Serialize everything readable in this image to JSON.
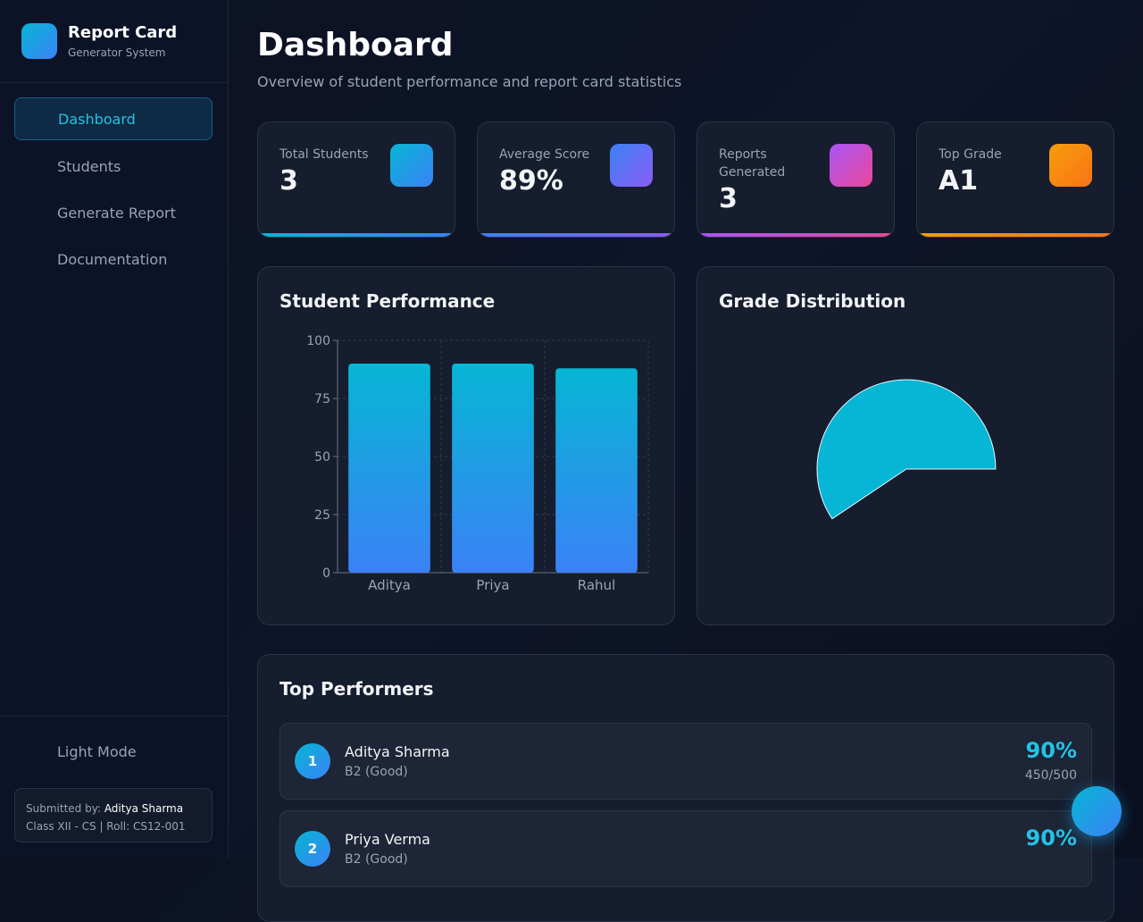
{
  "sidebar": {
    "brand": {
      "title": "Report Card",
      "subtitle": "Generator System"
    },
    "nav": [
      "Dashboard",
      "Students",
      "Generate Report",
      "Documentation"
    ],
    "theme_toggle": "Light Mode",
    "footer": {
      "submitted_label": "Submitted by:",
      "submitted_name": "Aditya Sharma",
      "class_info": "Class XII - CS | Roll: CS12-001"
    }
  },
  "header": {
    "title": "Dashboard",
    "subtitle": "Overview of student performance and report card statistics"
  },
  "stats": [
    {
      "label": "Total Students",
      "value": "3"
    },
    {
      "label": "Average Score",
      "value": "89%"
    },
    {
      "label": "Reports Generated",
      "value": "3"
    },
    {
      "label": "Top Grade",
      "value": "A1"
    }
  ],
  "chart_data": [
    {
      "type": "bar",
      "title": "Student Performance",
      "categories": [
        "Aditya",
        "Priya",
        "Rahul"
      ],
      "values": [
        90,
        90,
        88
      ],
      "color": "#06b6d4",
      "color_end": "#3b82f6",
      "ylim": [
        0,
        100
      ],
      "yticks": [
        0,
        25,
        50,
        75,
        100
      ],
      "grid": true
    },
    {
      "type": "pie",
      "title": "Grade Distribution",
      "categories": [
        null,
        null
      ],
      "values": [
        59.4,
        40.6
      ],
      "colors": [
        "#06b6d4",
        "transparent"
      ]
    }
  ],
  "performers": {
    "title": "Top Performers",
    "items": [
      {
        "rank": "1",
        "name": "Aditya Sharma",
        "grade": "B2 (Good)",
        "percent": "90%",
        "marks": "450/500"
      },
      {
        "rank": "2",
        "name": "Priya Verma",
        "grade": "B2 (Good)",
        "percent": "90%"
      }
    ]
  }
}
